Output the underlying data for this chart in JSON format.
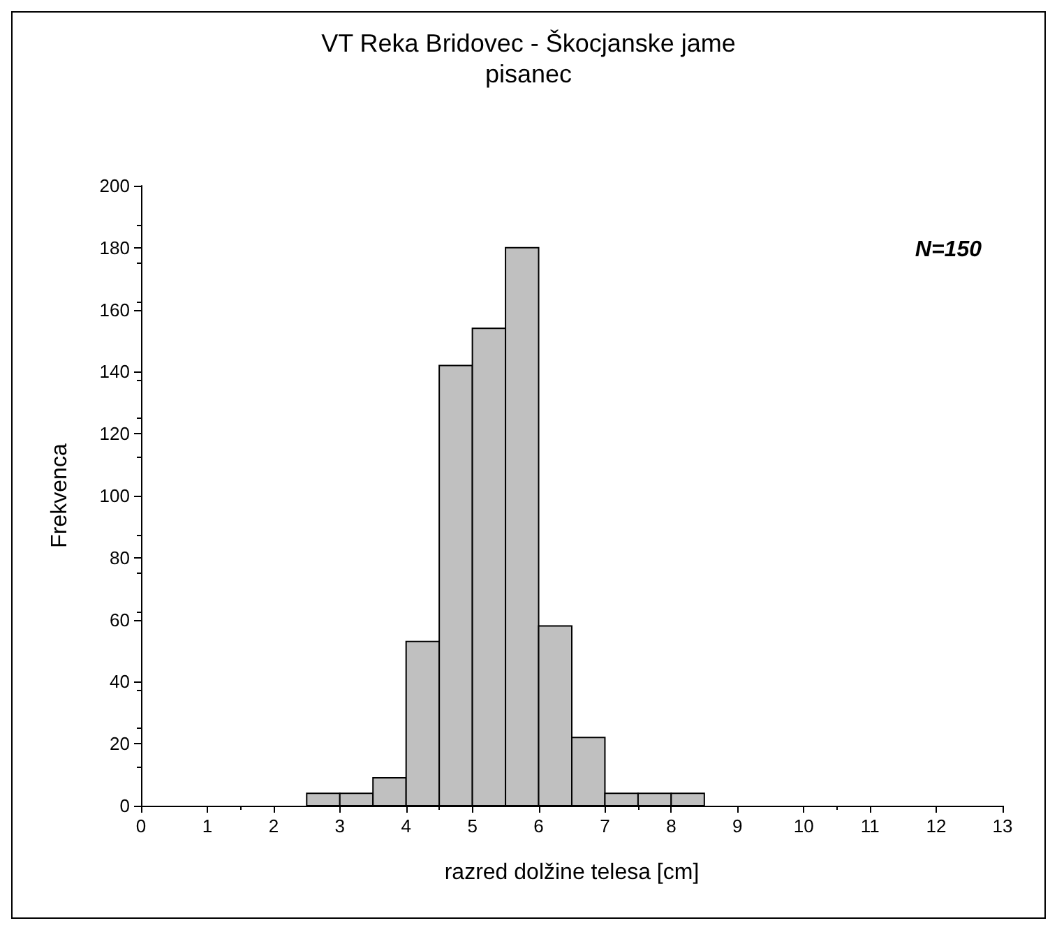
{
  "chart_data": {
    "type": "histogram",
    "title": "VT Reka Bridovec - Škocjanske jame",
    "subtitle": "pisanec",
    "xlabel": "razred dolžine telesa [cm]",
    "ylabel": "Frekvenca",
    "annotations": [
      "N=150"
    ],
    "bins": [
      2.5,
      3,
      3.5,
      4,
      4.5,
      5,
      5.5,
      6,
      6.5,
      7,
      7.5,
      8,
      8.5
    ],
    "values": [
      4,
      4,
      9,
      53,
      142,
      154,
      180,
      58,
      22,
      4,
      4,
      4
    ],
    "color": "#c0c0c0",
    "xlim": [
      0,
      13
    ],
    "xticks": [
      0,
      1,
      2,
      3,
      4,
      5,
      6,
      7,
      8,
      9,
      10,
      11,
      12,
      13
    ],
    "ylim": [
      0,
      200
    ],
    "yticks": [
      0,
      20,
      40,
      60,
      80,
      100,
      120,
      140,
      160,
      180,
      200
    ],
    "grid": false
  }
}
